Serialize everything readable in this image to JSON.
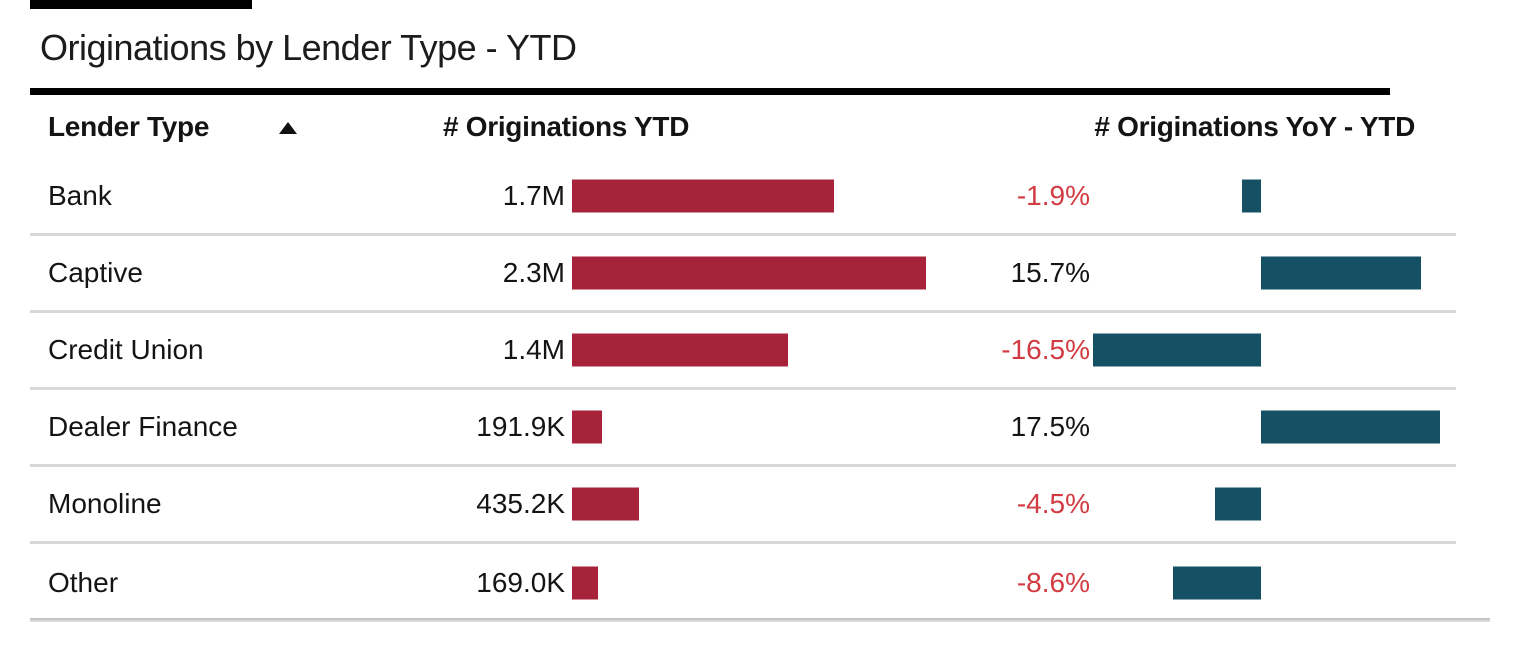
{
  "title": "Originations by Lender Type - YTD",
  "table": {
    "headers": {
      "lender_type": "Lender Type",
      "originations": "# Originations YTD",
      "yoy": "# Originations YoY - YTD"
    },
    "sort": {
      "column": "Lender Type",
      "direction": "ascending"
    },
    "rows": [
      {
        "lender": "Bank",
        "orig_label": "1.7M",
        "orig_value_m": 1.7,
        "yoy_label": "-1.9%",
        "yoy_value": -1.9
      },
      {
        "lender": "Captive",
        "orig_label": "2.3M",
        "orig_value_m": 2.3,
        "yoy_label": "15.7%",
        "yoy_value": 15.7
      },
      {
        "lender": "Credit Union",
        "orig_label": "1.4M",
        "orig_value_m": 1.4,
        "yoy_label": "-16.5%",
        "yoy_value": -16.5
      },
      {
        "lender": "Dealer Finance",
        "orig_label": "191.9K",
        "orig_value_m": 0.1919,
        "yoy_label": "17.5%",
        "yoy_value": 17.5
      },
      {
        "lender": "Monoline",
        "orig_label": "435.2K",
        "orig_value_m": 0.4352,
        "yoy_label": "-4.5%",
        "yoy_value": -4.5
      },
      {
        "lender": "Other",
        "orig_label": "169.0K",
        "orig_value_m": 0.169,
        "yoy_label": "-8.6%",
        "yoy_value": -8.6
      }
    ]
  },
  "colors": {
    "bar_red": "#a62339",
    "bar_teal": "#165064",
    "negative_text": "#d23b41",
    "positive_text": "#141414",
    "separator": "#d8d8d8"
  },
  "chart_data": {
    "type": "table",
    "title": "Originations by Lender Type - YTD",
    "columns": [
      "Lender Type",
      "# Originations YTD",
      "# Originations YoY - YTD"
    ],
    "sorted_by": "Lender Type ascending",
    "categories": [
      "Bank",
      "Captive",
      "Credit Union",
      "Dealer Finance",
      "Monoline",
      "Other"
    ],
    "series": [
      {
        "name": "# Originations YTD",
        "type": "bar",
        "color": "#a62339",
        "values": [
          1700000,
          2300000,
          1400000,
          191900,
          435200,
          169000
        ],
        "labels": [
          "1.7M",
          "2.3M",
          "1.4M",
          "191.9K",
          "435.2K",
          "169.0K"
        ]
      },
      {
        "name": "# Originations YoY - YTD (%)",
        "type": "bar",
        "color": "#165064",
        "baseline": 0,
        "values": [
          -1.9,
          15.7,
          -16.5,
          17.5,
          -4.5,
          -8.6
        ],
        "labels": [
          "-1.9%",
          "15.7%",
          "-16.5%",
          "17.5%",
          "-4.5%",
          "-8.6%"
        ],
        "negative_label_color": "#d23b41"
      }
    ],
    "legend": "none",
    "grid": "row separators only"
  }
}
